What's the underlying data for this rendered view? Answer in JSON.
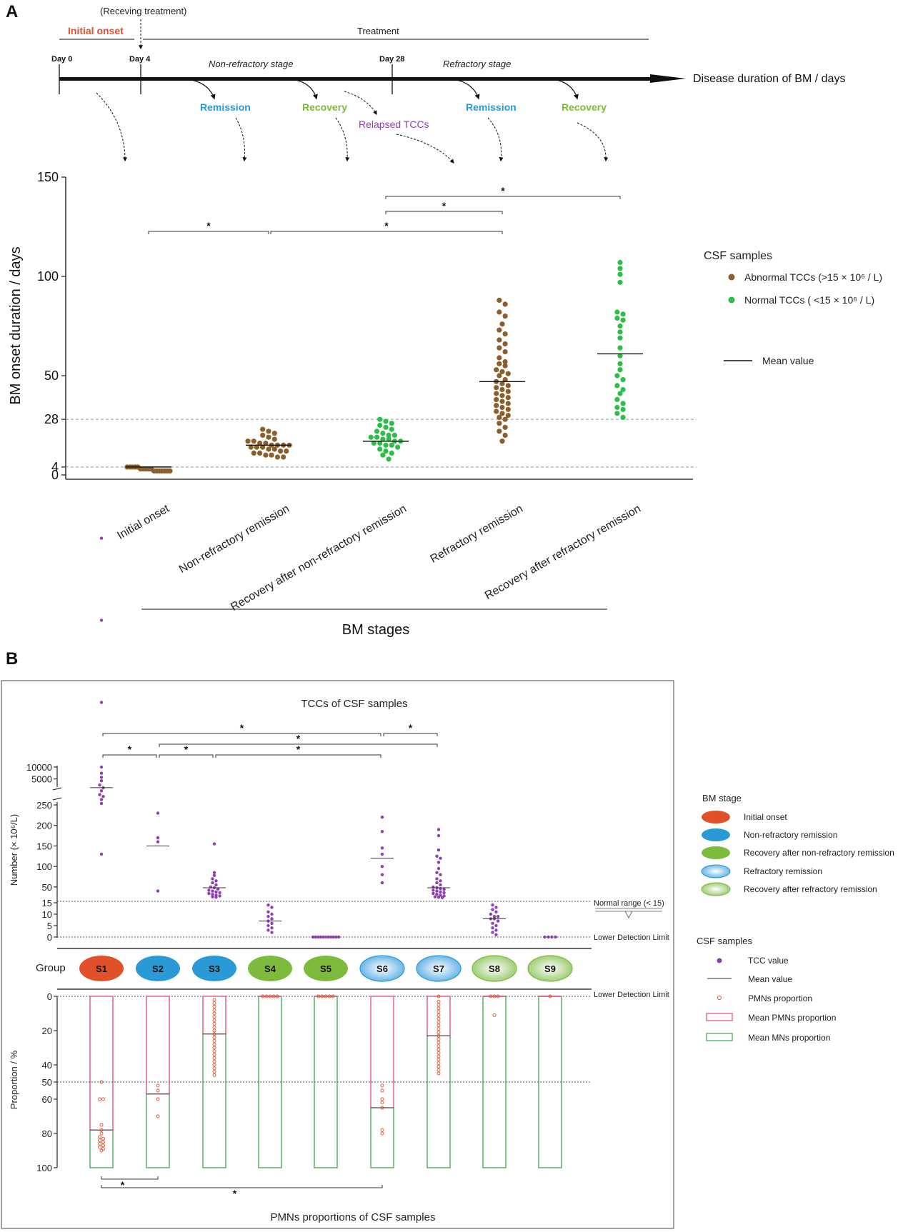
{
  "panel_a": {
    "letter": "A",
    "timeline": {
      "treatment_note": "(Receving treatment)",
      "initial_onset": "Initial onset",
      "treatment": "Treatment",
      "day0": "Day 0",
      "day4": "Day 4",
      "day28": "Day 28",
      "nonrefractory_stage": "Non-refractory stage",
      "refractory_stage": "Refractory stage",
      "arrow_label": "Disease duration of BM / days",
      "remission1": "Remission",
      "recovery1": "Recovery",
      "relapsed": "Relapsed TCCs",
      "remission2": "Remission",
      "recovery2": "Recovery"
    },
    "legend": {
      "title": "CSF samples",
      "abnormal": "Abnormal TCCs (>15 × 10⁶ / L)",
      "normal": "Normal TCCs ( <15 × 10⁶ / L)",
      "mean": "Mean value"
    },
    "xaxis_title": "BM stages",
    "colors": {
      "abnormal": "#8B5E2B",
      "normal": "#2DBE4A",
      "red": "#E2502A",
      "blue": "#2A9AD6",
      "green": "#7DBB3C",
      "purple": "#8E3FB1"
    }
  },
  "panel_b": {
    "letter": "B",
    "top_title": "TCCs of CSF samples",
    "bottom_title": "PMNs proportions of CSF samples",
    "group_label": "Group",
    "normal_range": "Normal range (< 15)",
    "lower_limit_top": "Lower Detection Limit",
    "lower_limit_bottom": "Lower Detection Limit",
    "legend_stage": {
      "title": "BM stage",
      "items": [
        "Initial onset",
        "Non-refractory remission",
        "Recovery after non-refractory remission",
        "Refractory remission",
        "Recovery after refractory remission"
      ]
    },
    "legend_csf": {
      "title": "CSF samples",
      "items": [
        "TCC value",
        "Mean value",
        "PMNs proportion",
        "Mean PMNs proportion",
        "Mean MNs proportion"
      ]
    }
  },
  "chart_data": [
    {
      "type": "scatter",
      "title": "",
      "xlabel": "BM stages",
      "ylabel": "BM onset duration / days",
      "ylim": [
        0,
        150
      ],
      "yticks": [
        "150",
        "100",
        "50",
        "28",
        "4",
        "0"
      ],
      "reference_lines": [
        28,
        4
      ],
      "categories": [
        "Initial onset",
        "Non-refractory remission",
        "Recovery after non-refractory remission",
        "Refractory remission",
        "Recovery after refractory remission"
      ],
      "means": [
        4,
        15,
        17,
        47,
        61
      ],
      "series": [
        {
          "category": "Initial onset",
          "class": "abnormal",
          "values": [
            2,
            2,
            2,
            2,
            2,
            2,
            2,
            3,
            3,
            3,
            3,
            3,
            4,
            4,
            4,
            4,
            4
          ]
        },
        {
          "category": "Non-refractory remission",
          "class": "abnormal",
          "values": [
            9,
            9,
            10,
            10,
            11,
            11,
            12,
            12,
            13,
            13,
            14,
            14,
            14,
            15,
            15,
            15,
            15,
            16,
            16,
            17,
            17,
            18,
            19,
            20,
            21,
            22,
            23
          ]
        },
        {
          "category": "Recovery after non-refractory remission",
          "class": "normal",
          "values": [
            8,
            10,
            11,
            12,
            13,
            14,
            15,
            15,
            16,
            16,
            17,
            17,
            18,
            18,
            19,
            19,
            20,
            20,
            21,
            22,
            23,
            24,
            25,
            26,
            27,
            28
          ]
        },
        {
          "category": "Refractory remission",
          "class": "abnormal",
          "values": [
            17,
            20,
            22,
            24,
            26,
            28,
            29,
            30,
            31,
            32,
            33,
            34,
            35,
            36,
            37,
            38,
            39,
            40,
            41,
            42,
            43,
            44,
            45,
            46,
            47,
            48,
            50,
            51,
            52,
            53,
            55,
            56,
            57,
            59,
            62,
            64,
            66,
            68,
            71,
            73,
            76,
            80,
            82,
            86,
            88
          ]
        },
        {
          "category": "Recovery after refractory remission",
          "class": "normal",
          "values": [
            29,
            31,
            33,
            34,
            36,
            38,
            41,
            43,
            45,
            48,
            50,
            53,
            56,
            60,
            64,
            69,
            72,
            75,
            78,
            79,
            81,
            82,
            97,
            101,
            104,
            107
          ]
        }
      ],
      "significance": [
        {
          "from": "Initial onset",
          "to": "Non-refractory remission",
          "label": "*"
        },
        {
          "from": "Non-refractory remission",
          "to": "Refractory remission",
          "label": "*"
        },
        {
          "from": "Recovery after non-refractory remission",
          "to": "Refractory remission",
          "label": "*"
        },
        {
          "from": "Recovery after non-refractory remission",
          "to": "Recovery after refractory remission",
          "label": "*"
        }
      ]
    },
    {
      "type": "scatter",
      "title": "TCCs of CSF samples",
      "ylabel": "Number (× 10⁶/L)",
      "ytick_labels": [
        "10000",
        "5000",
        "250",
        "200",
        "150",
        "100",
        "50",
        "15",
        "10",
        "5",
        "0"
      ],
      "categories": [
        "S1",
        "S2",
        "S3",
        "S4",
        "S5",
        "S6",
        "S7",
        "S8",
        "S9"
      ],
      "category_stage": [
        "Initial onset",
        "Non-refractory remission",
        "Non-refractory remission",
        "Recovery after non-refractory remission",
        "Recovery after non-refractory remission",
        "Refractory remission",
        "Refractory remission",
        "Recovery after refractory remission",
        "Recovery after refractory remission"
      ],
      "means": [
        3000,
        150,
        48,
        7,
        0,
        120,
        48,
        8,
        0
      ],
      "values": [
        [
          10000,
          7000,
          5500,
          4500,
          3500,
          3000,
          2500,
          2000,
          1800,
          1500,
          1200,
          900,
          700,
          500,
          130
        ],
        [
          230,
          170,
          160,
          40
        ],
        [
          155,
          85,
          78,
          70,
          65,
          60,
          55,
          50,
          48,
          45,
          42,
          40,
          38,
          36,
          34,
          32,
          30,
          28,
          26,
          25
        ],
        [
          14,
          13,
          11,
          10,
          9,
          8,
          7,
          6,
          5,
          4,
          3,
          2
        ],
        [
          0,
          0,
          0,
          0,
          0,
          0,
          0,
          0,
          0,
          0,
          0
        ],
        [
          220,
          185,
          145,
          130,
          100,
          80,
          60
        ],
        [
          190,
          175,
          140,
          125,
          120,
          110,
          95,
          85,
          80,
          70,
          65,
          60,
          55,
          50,
          48,
          46,
          44,
          42,
          40,
          38,
          36,
          34,
          32,
          30,
          28,
          26,
          25,
          24
        ],
        [
          14,
          13,
          12,
          11,
          10,
          9,
          9,
          8,
          8,
          7,
          6,
          5,
          4,
          3,
          2,
          1
        ],
        [
          0,
          0,
          0,
          0
        ]
      ],
      "significance": [
        {
          "from": "S1",
          "to": "S6",
          "label": "*"
        },
        {
          "from": "S6",
          "to": "S7",
          "label": "*"
        },
        {
          "from": "S2",
          "to": "S7",
          "label": "*"
        },
        {
          "from": "S1",
          "to": "S2",
          "label": "*"
        },
        {
          "from": "S2",
          "to": "S3",
          "label": "*"
        },
        {
          "from": "S3",
          "to": "S6",
          "label": "*"
        }
      ]
    },
    {
      "type": "bar",
      "title": "PMNs proportions of CSF samples",
      "ylabel": "Proportion / %",
      "ylim": [
        0,
        100
      ],
      "yticks": [
        "0",
        "20",
        "40",
        "50",
        "60",
        "80",
        "100"
      ],
      "categories": [
        "S1",
        "S2",
        "S3",
        "S4",
        "S5",
        "S6",
        "S7",
        "S8",
        "S9"
      ],
      "mean_pmn": [
        78,
        57,
        22,
        0,
        0,
        65,
        23,
        0,
        0
      ],
      "values": [
        [
          50,
          60,
          60,
          75,
          78,
          80,
          82,
          83,
          84,
          85,
          86,
          87,
          88,
          89,
          90
        ],
        [
          52,
          55,
          60,
          70
        ],
        [
          2,
          4,
          6,
          8,
          10,
          12,
          14,
          16,
          18,
          20,
          22,
          24,
          26,
          28,
          30,
          32,
          34,
          36,
          38,
          40,
          42,
          44,
          46
        ],
        [
          0,
          0,
          0,
          0,
          0
        ],
        [
          0,
          0,
          0,
          0,
          0
        ],
        [
          52,
          55,
          60,
          62,
          65,
          78,
          80
        ],
        [
          0,
          3,
          5,
          7,
          9,
          11,
          13,
          15,
          17,
          19,
          21,
          23,
          25,
          27,
          29,
          31,
          33,
          35,
          37,
          39,
          41,
          43,
          45
        ],
        [
          0,
          0,
          0,
          11
        ],
        [
          0
        ]
      ],
      "significance": [
        {
          "from": "S1",
          "to": "S2",
          "label": "*"
        },
        {
          "from": "S1",
          "to": "S6",
          "label": "*"
        }
      ]
    }
  ]
}
